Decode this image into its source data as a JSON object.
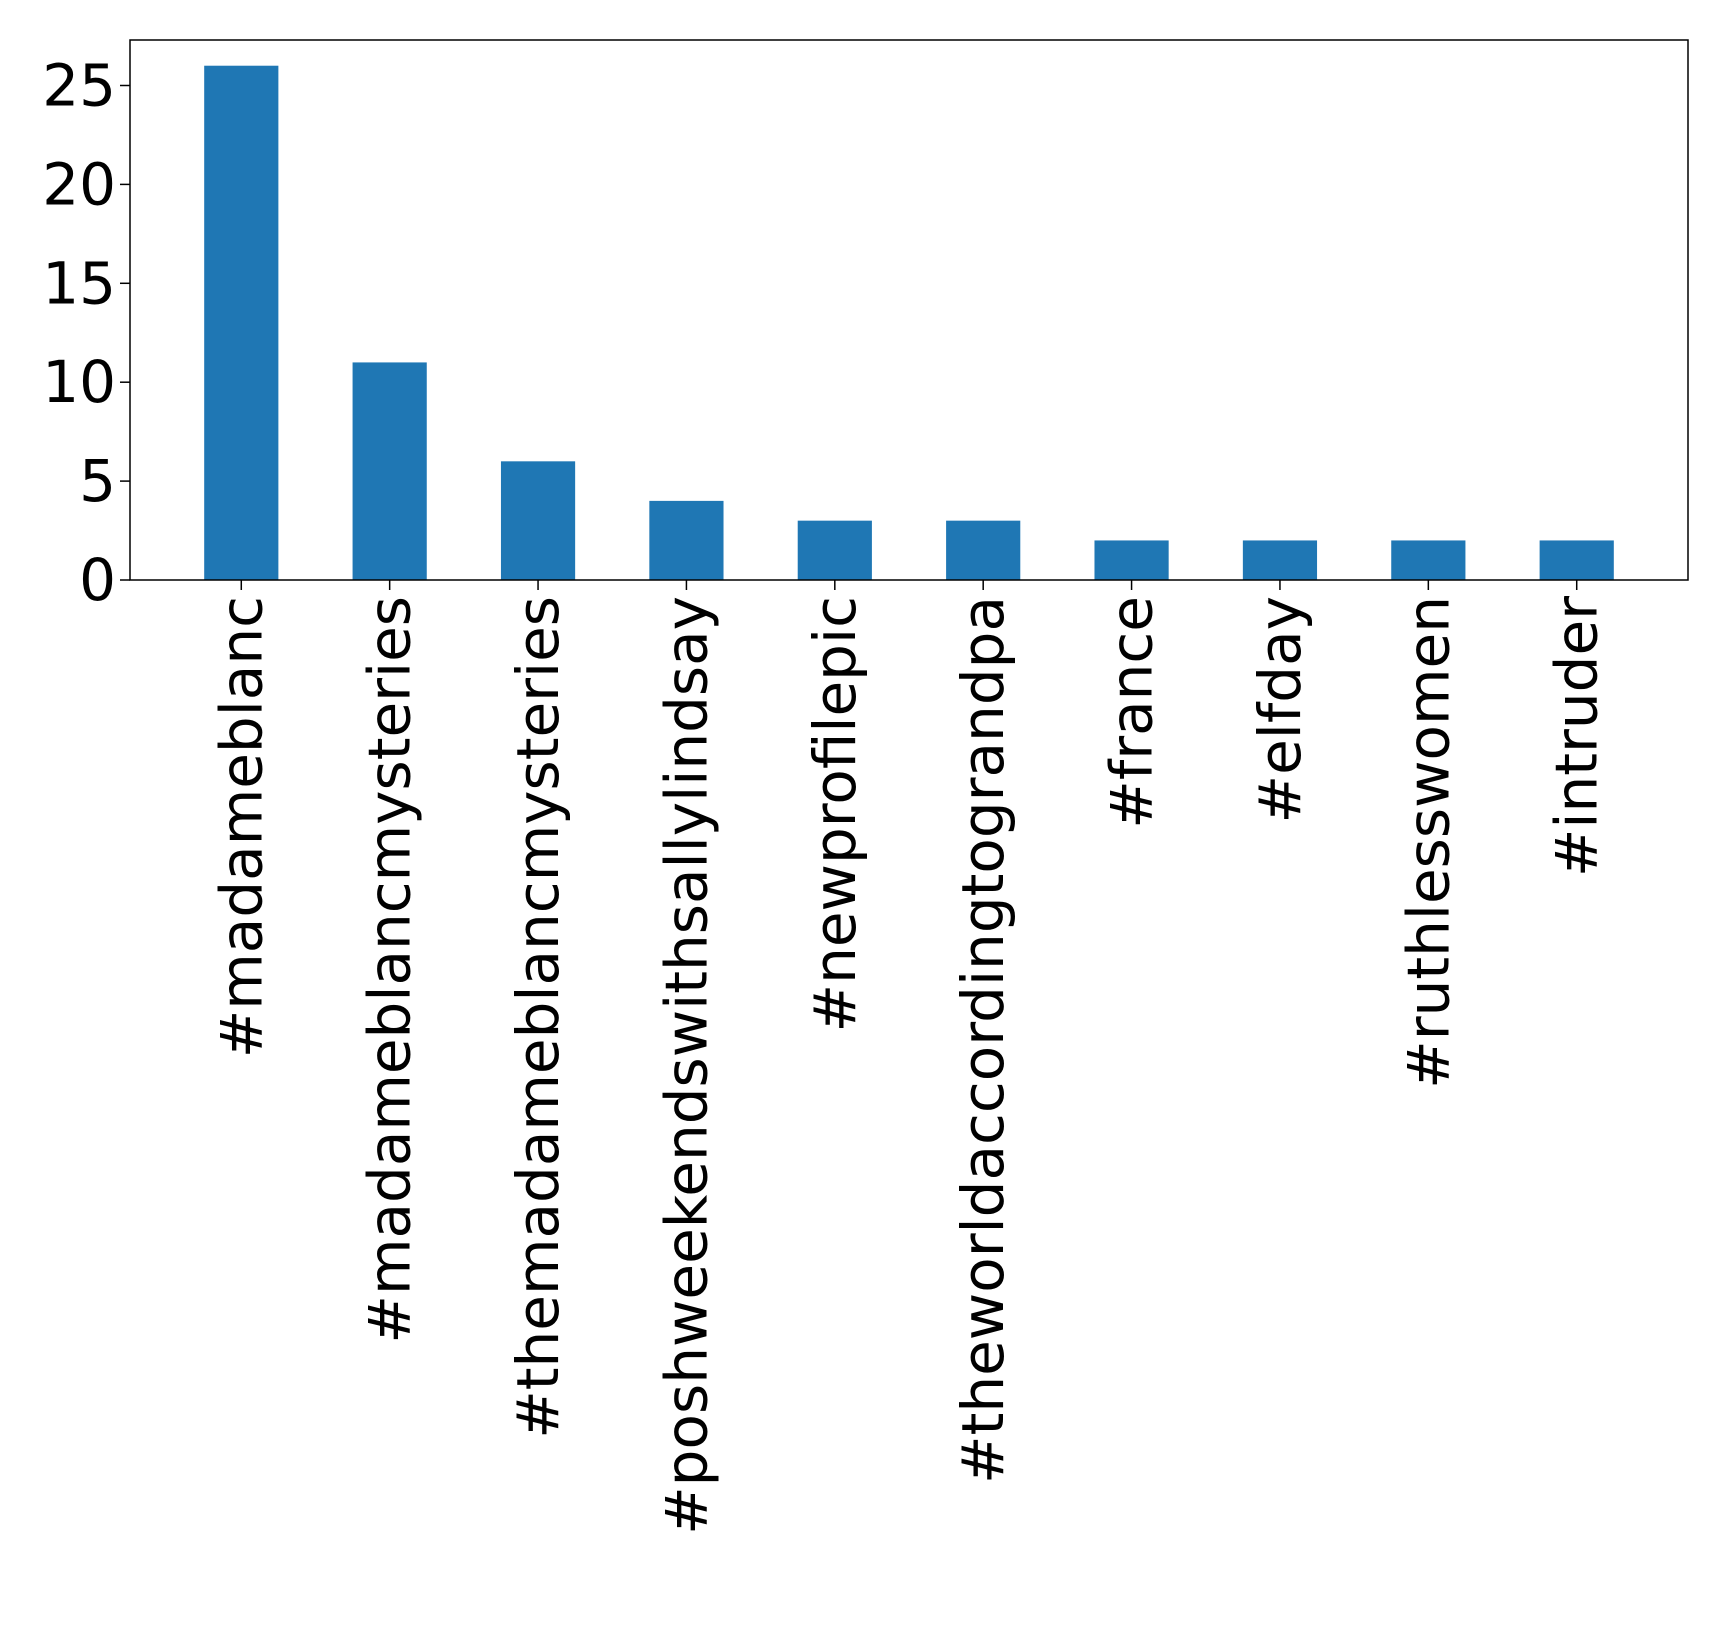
{
  "chart_data": {
    "type": "bar",
    "categories": [
      "#madameblanc",
      "#madameblancmysteries",
      "#themadameblancmysteries",
      "#poshweekendswithsallylindsay",
      "#newprofilepic",
      "#theworldaccordingtograndpa",
      "#france",
      "#elfday",
      "#ruthlesswomen",
      "#intruder"
    ],
    "values": [
      26,
      11,
      6,
      4,
      3,
      3,
      2,
      2,
      2,
      2
    ],
    "title": "",
    "xlabel": "",
    "ylabel": "",
    "ylim": [
      0,
      27.3
    ],
    "yticks": [
      0,
      5,
      10,
      15,
      20,
      25
    ],
    "bar_color": "#1f77b4",
    "grid": false,
    "legend": "none"
  }
}
